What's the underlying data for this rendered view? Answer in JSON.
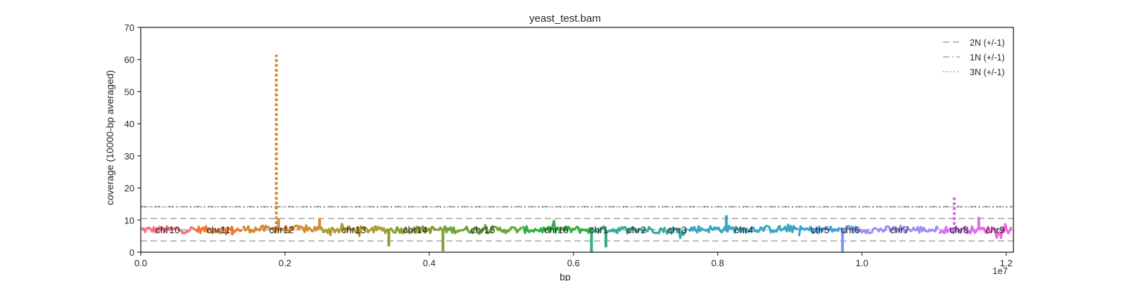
{
  "chart_data": {
    "type": "line",
    "title": "yeast_test.bam",
    "xlabel": "bp",
    "ylabel": "coverage (10000-bp averaged)",
    "x_multiplier_label": "1e7",
    "xlim": [
      0,
      12100000
    ],
    "ylim": [
      0,
      70
    ],
    "x_ticks": [
      0,
      2000000,
      4000000,
      6000000,
      8000000,
      10000000,
      12000000
    ],
    "x_tick_labels": [
      "0.0",
      "0.2",
      "0.4",
      "0.6",
      "0.8",
      "1.0",
      "1.2"
    ],
    "y_ticks": [
      0,
      10,
      20,
      30,
      40,
      50,
      60,
      70
    ],
    "y_tick_labels": [
      "0",
      "10",
      "20",
      "30",
      "40",
      "50",
      "60",
      "70"
    ],
    "grid": false,
    "legend_position": "top-right",
    "reference_lines": [
      {
        "label": "2N (+/-1)",
        "style": "dashed",
        "values": [
          3.5,
          10.5
        ]
      },
      {
        "label": "1N (+/-1)",
        "style": "dashdot",
        "values": [
          0,
          7
        ]
      },
      {
        "label": "3N (+/-1)",
        "style": "dotted",
        "values": [
          7,
          14
        ]
      }
    ],
    "reference_dashdot_upper": 14.2,
    "chromosomes": [
      {
        "name": "chr10",
        "start": 0,
        "end": 745000,
        "mean": 7.0,
        "color": "#f77189",
        "features": []
      },
      {
        "name": "chr11",
        "start": 745000,
        "end": 1412000,
        "mean": 7.0,
        "color": "#f17731",
        "features": [
          {
            "x": 1270000,
            "y": 5.3
          }
        ]
      },
      {
        "name": "chr12",
        "start": 1412000,
        "end": 2490000,
        "mean": 7.2,
        "color": "#d58b31",
        "features": [
          {
            "x": 1880000,
            "y": 61.5,
            "style": "dotted"
          },
          {
            "x": 1910000,
            "y": 10.5
          },
          {
            "x": 2480000,
            "y": 10.5
          }
        ]
      },
      {
        "name": "chr13",
        "start": 2490000,
        "end": 3414000,
        "mean": 7.0,
        "color": "#ae9d31",
        "features": []
      },
      {
        "name": "chr14",
        "start": 3414000,
        "end": 4198000,
        "mean": 7.0,
        "color": "#8a9d31",
        "features": [
          {
            "x": 3440000,
            "y": 1.8
          },
          {
            "x": 4190000,
            "y": 0.3
          }
        ]
      },
      {
        "name": "chr15",
        "start": 4198000,
        "end": 5289000,
        "mean": 7.0,
        "color": "#6ba631",
        "features": []
      },
      {
        "name": "chr16",
        "start": 5289000,
        "end": 6237000,
        "mean": 7.0,
        "color": "#33b040",
        "features": []
      },
      {
        "name": "chr1",
        "start": 6237000,
        "end": 6467000,
        "mean": 7.0,
        "color": "#35ad7d",
        "features": [
          {
            "x": 6250000,
            "y": 0.1
          },
          {
            "x": 6450000,
            "y": 1.5
          }
        ]
      },
      {
        "name": "chr2",
        "start": 6467000,
        "end": 7280000,
        "mean": 7.0,
        "color": "#36ac99",
        "features": []
      },
      {
        "name": "chr3",
        "start": 7280000,
        "end": 7596000,
        "mean": 6.8,
        "color": "#37aab0",
        "features": []
      },
      {
        "name": "chr4",
        "start": 7596000,
        "end": 9128000,
        "mean": 7.2,
        "color": "#38a8c4",
        "features": [
          {
            "x": 8120000,
            "y": 11.5
          }
        ]
      },
      {
        "name": "chr5",
        "start": 9128000,
        "end": 9705000,
        "mean": 7.0,
        "color": "#3ba3e0",
        "features": []
      },
      {
        "name": "chr6",
        "start": 9705000,
        "end": 9975000,
        "mean": 7.0,
        "color": "#6e9af4",
        "features": [
          {
            "x": 9730000,
            "y": 0.1
          }
        ]
      },
      {
        "name": "chr7",
        "start": 9975000,
        "end": 11066000,
        "mean": 7.0,
        "color": "#a48cf4",
        "features": []
      },
      {
        "name": "chr8",
        "start": 11066000,
        "end": 11628000,
        "mean": 7.0,
        "color": "#dc6ef3",
        "features": [
          {
            "x": 11280000,
            "y": 17.5,
            "style": "dotted"
          },
          {
            "x": 11620000,
            "y": 11.0
          }
        ]
      },
      {
        "name": "chr9",
        "start": 11628000,
        "end": 12068000,
        "mean": 7.0,
        "color": "#f561dd",
        "features": []
      }
    ]
  }
}
